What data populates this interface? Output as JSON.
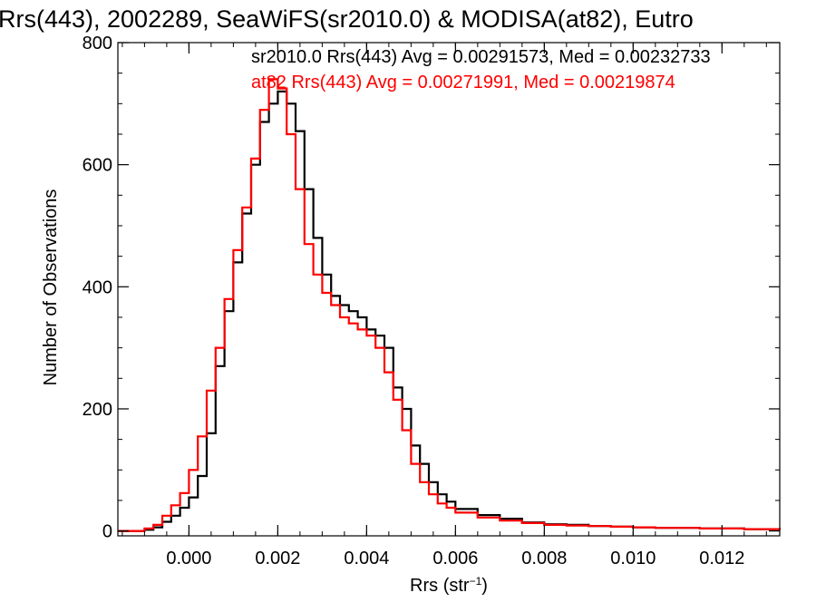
{
  "chart_data": {
    "type": "line",
    "title": "Rrs(443), 2002289, SeaWiFS(sr2010.0) & MODISA(at82), Eutro",
    "xlabel": "Rrs (str",
    "xlabel_sup": "−1",
    "xlabel_close": ")",
    "ylabel": "Number of Observations",
    "xlim": [
      -0.0016,
      0.0133
    ],
    "ylim": [
      -8,
      800
    ],
    "x_ticks": [
      0.0,
      0.002,
      0.004,
      0.006,
      0.008,
      0.01,
      0.012
    ],
    "x_tick_labels": [
      "0.000",
      "0.002",
      "0.004",
      "0.006",
      "0.008",
      "0.010",
      "0.012"
    ],
    "y_ticks": [
      0,
      200,
      400,
      600,
      800
    ],
    "y_tick_labels": [
      "0",
      "200",
      "400",
      "600",
      "800"
    ],
    "grid": false,
    "legend_position": "top-right",
    "colors": {
      "sr2010": "#000000",
      "at82": "#ff0000",
      "axes": "#000000"
    },
    "series": [
      {
        "name": "sr2010.0",
        "color": "#000000",
        "annotation": "sr2010.0 Rrs(443) Avg = 0.00291573, Med = 0.00232733",
        "x": [
          -0.0016,
          -0.0012,
          -0.001,
          -0.0008,
          -0.0006,
          -0.0004,
          -0.0002,
          0.0,
          0.0002,
          0.0004,
          0.0006,
          0.0008,
          0.001,
          0.0012,
          0.0014,
          0.0016,
          0.0018,
          0.002,
          0.0022,
          0.0024,
          0.0026,
          0.0028,
          0.003,
          0.0032,
          0.0034,
          0.0036,
          0.0038,
          0.004,
          0.0042,
          0.0044,
          0.0046,
          0.0048,
          0.005,
          0.0052,
          0.0054,
          0.0056,
          0.0058,
          0.006,
          0.0065,
          0.007,
          0.0075,
          0.008,
          0.0085,
          0.009,
          0.0095,
          0.01,
          0.0105,
          0.011,
          0.0115,
          0.012,
          0.0125,
          0.013,
          0.0133
        ],
        "y": [
          0,
          0,
          2,
          6,
          15,
          25,
          38,
          55,
          90,
          160,
          270,
          360,
          440,
          520,
          600,
          670,
          700,
          720,
          700,
          655,
          560,
          480,
          420,
          385,
          370,
          360,
          350,
          330,
          320,
          300,
          235,
          200,
          140,
          110,
          80,
          60,
          48,
          36,
          26,
          20,
          14,
          11,
          10,
          8,
          7,
          6,
          5,
          5,
          4,
          4,
          3,
          3,
          2
        ]
      },
      {
        "name": "at82",
        "color": "#ff0000",
        "annotation": "at82 Rrs(443) Avg = 0.00271991, Med = 0.00219874",
        "x": [
          -0.0016,
          -0.0012,
          -0.001,
          -0.0008,
          -0.0006,
          -0.0004,
          -0.0002,
          0.0,
          0.0002,
          0.0004,
          0.0006,
          0.0008,
          0.001,
          0.0012,
          0.0014,
          0.0016,
          0.0018,
          0.002,
          0.0022,
          0.0024,
          0.0026,
          0.0028,
          0.003,
          0.0032,
          0.0034,
          0.0036,
          0.0038,
          0.004,
          0.0042,
          0.0044,
          0.0046,
          0.0048,
          0.005,
          0.0052,
          0.0054,
          0.0056,
          0.0058,
          0.006,
          0.0065,
          0.007,
          0.0075,
          0.008,
          0.0085,
          0.009,
          0.0095,
          0.01,
          0.0105,
          0.011,
          0.0115,
          0.012,
          0.0125,
          0.013,
          0.0133
        ],
        "y": [
          0,
          0,
          4,
          10,
          25,
          42,
          62,
          100,
          155,
          230,
          300,
          380,
          460,
          530,
          610,
          690,
          740,
          725,
          650,
          560,
          470,
          420,
          390,
          370,
          350,
          340,
          330,
          320,
          300,
          260,
          215,
          165,
          110,
          80,
          60,
          45,
          38,
          30,
          22,
          17,
          13,
          10,
          9,
          8,
          7,
          6,
          5,
          5,
          4,
          4,
          3,
          3,
          2
        ]
      }
    ]
  }
}
